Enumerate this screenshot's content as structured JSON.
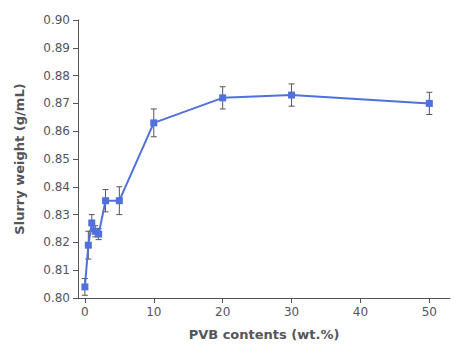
{
  "chart_data": {
    "type": "line",
    "x": [
      0,
      0.5,
      1,
      1.5,
      2,
      3,
      5,
      10,
      20,
      30,
      50
    ],
    "values": [
      0.804,
      0.819,
      0.827,
      0.824,
      0.823,
      0.835,
      0.835,
      0.863,
      0.872,
      0.873,
      0.87
    ],
    "yerr": [
      0.003,
      0.005,
      0.003,
      0.002,
      0.002,
      0.004,
      0.005,
      0.005,
      0.004,
      0.004,
      0.004
    ],
    "xlabel": "PVB contents (wt.%)",
    "ylabel": "Slurry weight (g/mL)",
    "xlim": [
      -1,
      53
    ],
    "xticks": [
      0,
      10,
      20,
      30,
      40,
      50
    ],
    "ylim": [
      0.8,
      0.9
    ],
    "yticks": [
      {
        "value": 0.8,
        "label": "0.80"
      },
      0.81,
      0.82,
      0.83,
      0.84,
      0.85,
      0.86,
      0.87,
      0.88,
      0.89,
      {
        "value": 0.9,
        "label": "0.90"
      }
    ],
    "marker": "square",
    "grid": false
  }
}
